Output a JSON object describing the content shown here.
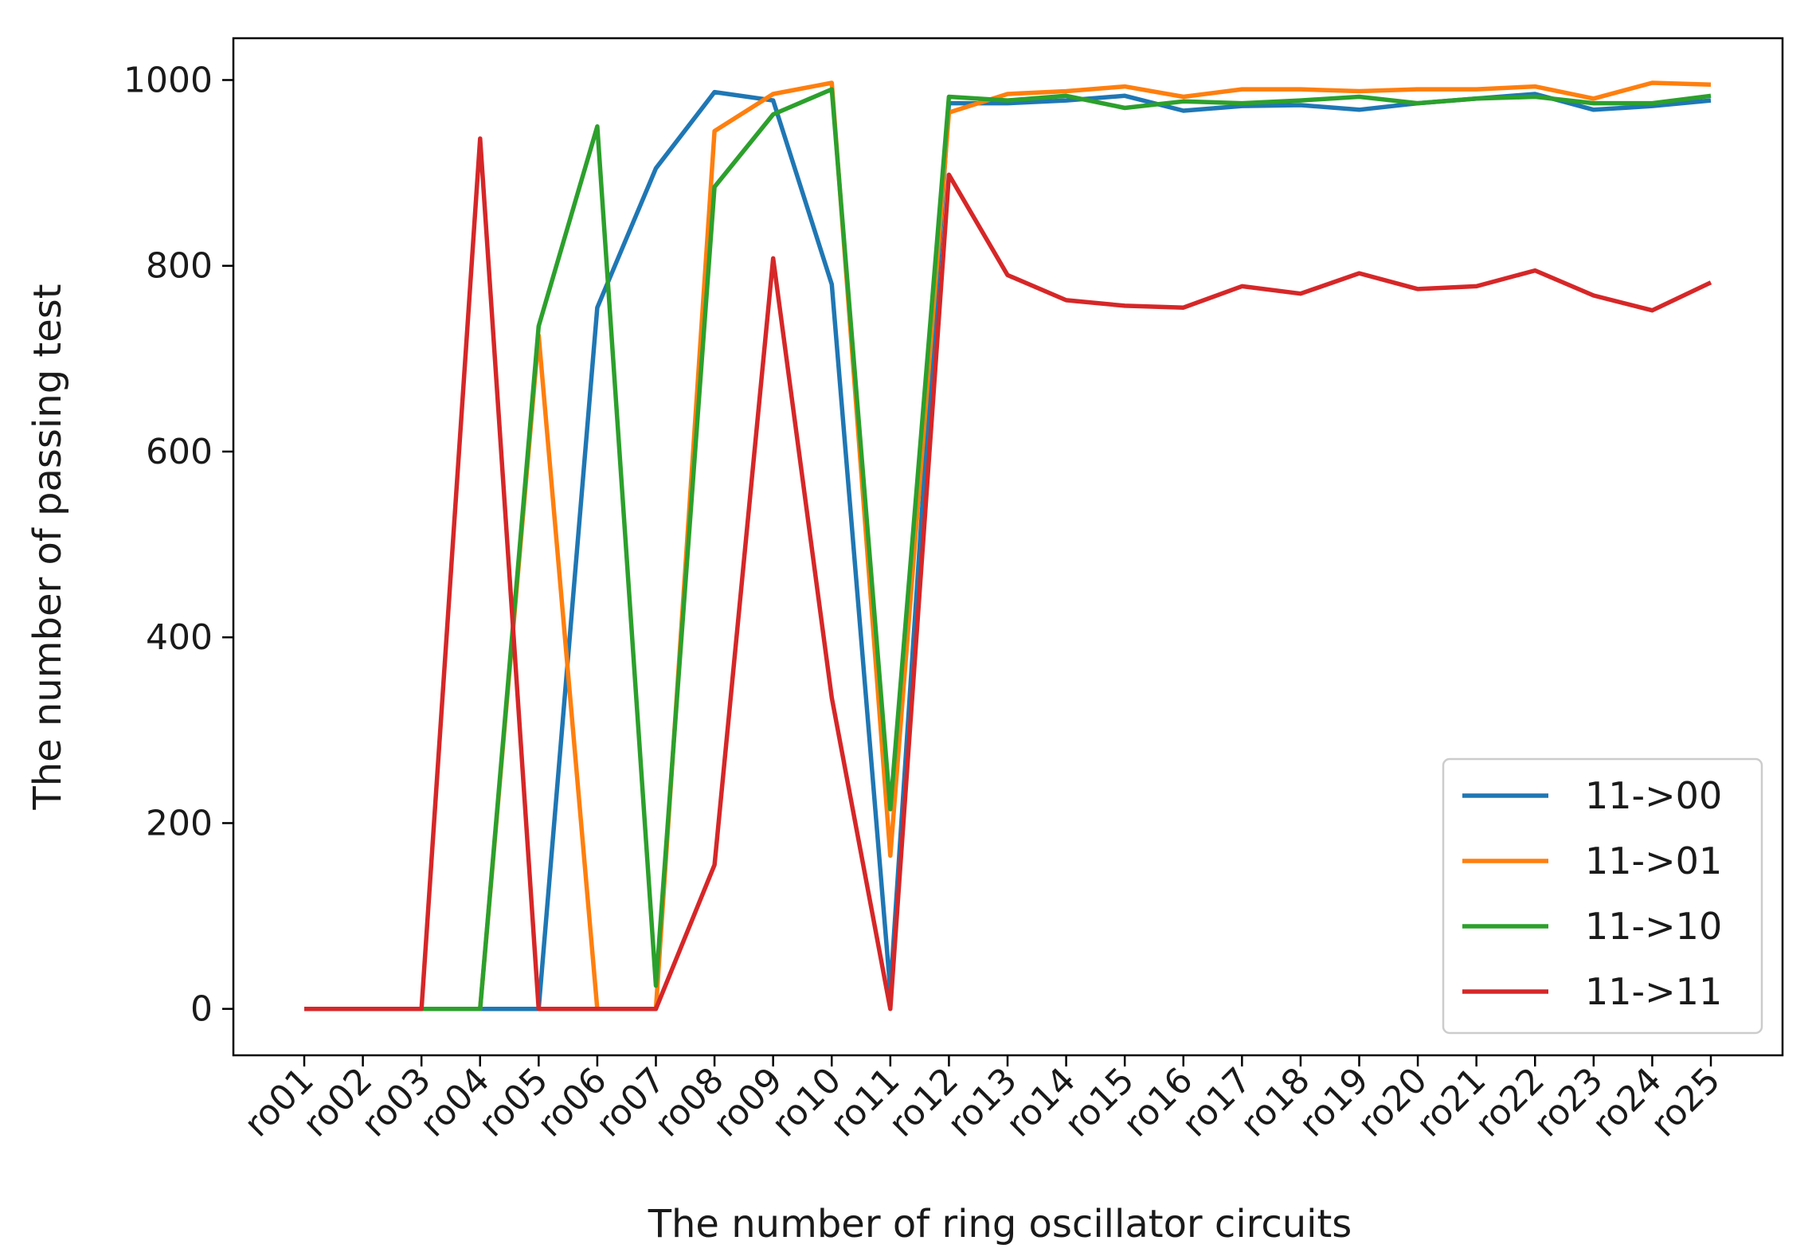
{
  "chart_data": {
    "type": "line",
    "title": "",
    "xlabel": "The number of ring oscillator circuits",
    "ylabel": "The number of passing test",
    "categories": [
      "ro01",
      "ro02",
      "ro03",
      "ro04",
      "ro05",
      "ro06",
      "ro07",
      "ro08",
      "ro09",
      "ro10",
      "ro11",
      "ro12",
      "ro13",
      "ro14",
      "ro15",
      "ro16",
      "ro17",
      "ro18",
      "ro19",
      "ro20",
      "ro21",
      "ro22",
      "ro23",
      "ro24",
      "ro25"
    ],
    "ylim": [
      -50,
      1045
    ],
    "yticks": [
      0,
      200,
      400,
      600,
      800,
      1000
    ],
    "ytick_labels": [
      "0",
      "200",
      "400",
      "600",
      "800",
      "1000"
    ],
    "grid": false,
    "legend_position": "bottom-right",
    "series": [
      {
        "name": "11->00",
        "color": "#1f77b4",
        "values": [
          0,
          0,
          0,
          0,
          0,
          755,
          905,
          987,
          978,
          780,
          20,
          975,
          975,
          978,
          983,
          967,
          972,
          973,
          968,
          975,
          980,
          985,
          968,
          972,
          978
        ]
      },
      {
        "name": "11->01",
        "color": "#ff7f0e",
        "values": [
          0,
          0,
          0,
          0,
          725,
          0,
          0,
          945,
          985,
          997,
          165,
          965,
          985,
          988,
          993,
          982,
          990,
          990,
          988,
          990,
          990,
          993,
          980,
          997,
          995
        ]
      },
      {
        "name": "11->10",
        "color": "#2ca02c",
        "values": [
          0,
          0,
          0,
          0,
          735,
          950,
          25,
          885,
          963,
          990,
          215,
          982,
          978,
          983,
          970,
          977,
          975,
          978,
          982,
          975,
          980,
          982,
          975,
          975,
          983
        ]
      },
      {
        "name": "11->11",
        "color": "#d62728",
        "values": [
          0,
          0,
          0,
          937,
          0,
          0,
          0,
          155,
          808,
          335,
          0,
          898,
          790,
          763,
          757,
          755,
          778,
          770,
          792,
          775,
          778,
          795,
          768,
          752,
          782
        ]
      }
    ]
  }
}
